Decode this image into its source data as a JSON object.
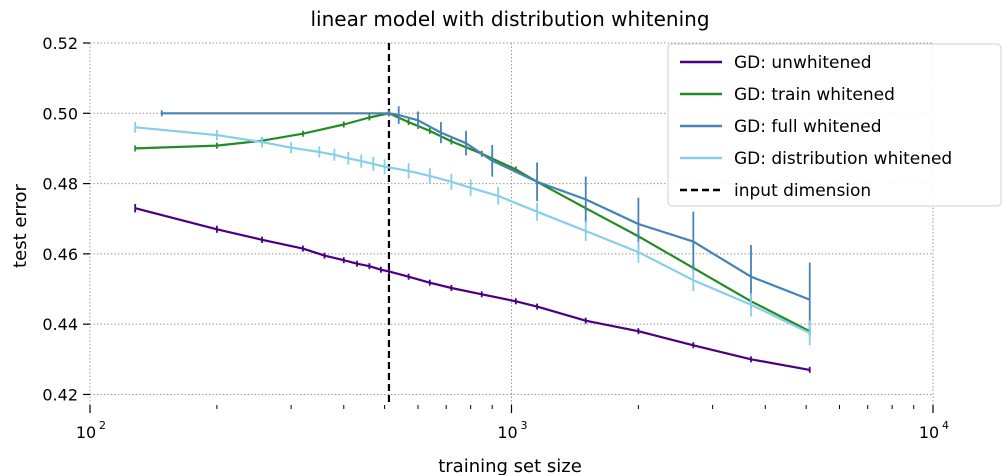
{
  "chart_data": {
    "type": "line",
    "title": "linear model with distribution whitening",
    "xlabel": "training set size",
    "ylabel": "test error",
    "xscale": "log",
    "xlim": [
      100,
      10000
    ],
    "ylim": [
      0.417,
      0.52
    ],
    "xticks": [
      {
        "value": 100,
        "base": "10",
        "exp": "2"
      },
      {
        "value": 1000,
        "base": "10",
        "exp": "3"
      },
      {
        "value": 10000,
        "base": "10",
        "exp": "4"
      }
    ],
    "yticks": [
      {
        "value": 0.42,
        "label": "0.42"
      },
      {
        "value": 0.44,
        "label": "0.44"
      },
      {
        "value": 0.46,
        "label": "0.46"
      },
      {
        "value": 0.48,
        "label": "0.48"
      },
      {
        "value": 0.5,
        "label": "0.50"
      },
      {
        "value": 0.52,
        "label": "0.52"
      }
    ],
    "grid": true,
    "legend_position": "top-right",
    "series": [
      {
        "name": "GD: unwhitened",
        "color": "#4b0082",
        "x": [
          128,
          200,
          256,
          320,
          360,
          400,
          430,
          460,
          490,
          512,
          570,
          640,
          720,
          850,
          1024,
          1150,
          1500,
          2000,
          2700,
          3700,
          5100
        ],
        "y": [
          0.473,
          0.467,
          0.464,
          0.4615,
          0.4595,
          0.4582,
          0.4572,
          0.4565,
          0.4555,
          0.455,
          0.4535,
          0.4518,
          0.4503,
          0.4485,
          0.4465,
          0.445,
          0.441,
          0.438,
          0.434,
          0.43,
          0.427
        ],
        "err": [
          0.0012,
          0.001,
          0.0009,
          0.0008,
          0.0007,
          0.0006,
          0.0006,
          0.0005,
          0.0005,
          0.0005,
          0.0005,
          0.0004,
          0.0004,
          0.0004,
          0.0003,
          0.0003,
          0.0003,
          0.0003,
          0.0002,
          0.0002,
          0.0002
        ]
      },
      {
        "name": "GD: train whitened",
        "color": "#228b22",
        "x": [
          128,
          200,
          256,
          320,
          400,
          460,
          512,
          570,
          640,
          720,
          850,
          1024,
          1150,
          1500,
          2000,
          2700,
          3700,
          5100
        ],
        "y": [
          0.49,
          0.4908,
          0.4922,
          0.4942,
          0.4968,
          0.4988,
          0.5,
          0.4975,
          0.495,
          0.492,
          0.4885,
          0.484,
          0.4805,
          0.473,
          0.465,
          0.456,
          0.4465,
          0.438
        ],
        "err": [
          0.0002,
          0.0002,
          0.0002,
          0.0002,
          0.0002,
          0.0002,
          0.0002,
          0.0002,
          0.0002,
          0.0002,
          0.0002,
          0.0002,
          0.0002,
          0.0002,
          0.0002,
          0.0002,
          0.0002,
          0.0002
        ]
      },
      {
        "name": "GD: full whitened",
        "color": "#4682b4",
        "x": [
          148,
          512,
          540,
          600,
          680,
          780,
          900,
          1150,
          1500,
          2000,
          2700,
          3700,
          5100
        ],
        "y": [
          0.5,
          0.5,
          0.4995,
          0.498,
          0.4945,
          0.4915,
          0.4865,
          0.4805,
          0.4755,
          0.4685,
          0.4635,
          0.4535,
          0.447
        ],
        "err": [
          0.0,
          0.0,
          0.0025,
          0.0025,
          0.003,
          0.0035,
          0.0045,
          0.0055,
          0.0065,
          0.0075,
          0.0085,
          0.009,
          0.0105
        ]
      },
      {
        "name": "GD: distribution whitened",
        "color": "#87ceeb",
        "x": [
          128,
          200,
          256,
          300,
          350,
          380,
          410,
          440,
          470,
          500,
          570,
          640,
          720,
          800,
          930,
          1150,
          1500,
          2000,
          2700,
          3700,
          5100
        ],
        "y": [
          0.496,
          0.4938,
          0.4918,
          0.4902,
          0.489,
          0.4882,
          0.4872,
          0.4864,
          0.4856,
          0.4848,
          0.4836,
          0.4822,
          0.4805,
          0.4788,
          0.4765,
          0.472,
          0.4665,
          0.4605,
          0.4525,
          0.4455,
          0.4375
        ],
        "err": [
          0.0015,
          0.0015,
          0.0015,
          0.0016,
          0.0016,
          0.0017,
          0.0018,
          0.0019,
          0.002,
          0.0021,
          0.0022,
          0.0022,
          0.0023,
          0.0024,
          0.0025,
          0.0026,
          0.0028,
          0.003,
          0.0031,
          0.0033,
          0.0035
        ]
      }
    ],
    "reference_lines": [
      {
        "name": "input dimension",
        "x": 512,
        "color": "#000000",
        "style": "dashed"
      }
    ]
  }
}
